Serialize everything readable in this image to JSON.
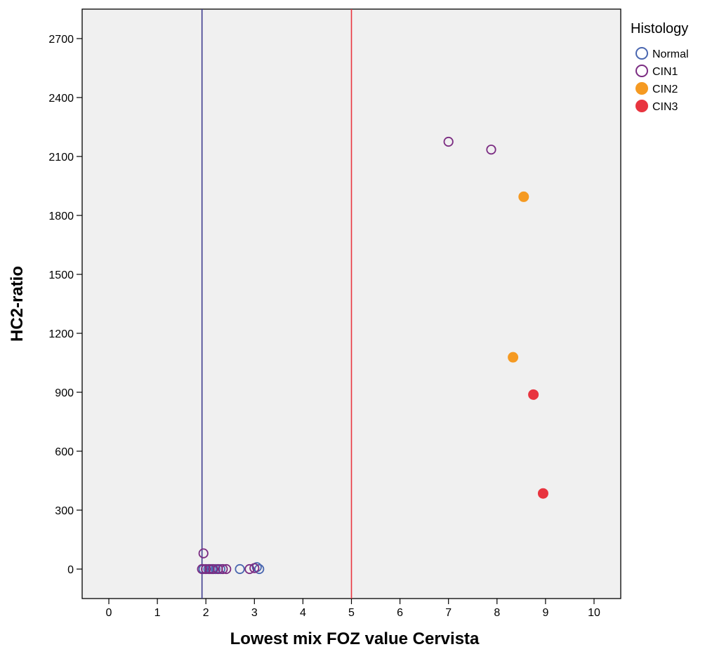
{
  "chart_data": {
    "type": "scatter",
    "xlabel": "Lowest mix FOZ value Cervista",
    "ylabel": "HC2-ratio",
    "xlim": [
      -0.55,
      10.55
    ],
    "ylim": [
      -150,
      2850
    ],
    "x_ticks": [
      0,
      1,
      2,
      3,
      4,
      5,
      6,
      7,
      8,
      9,
      10
    ],
    "y_ticks": [
      0,
      300,
      600,
      900,
      1200,
      1500,
      1800,
      2100,
      2400,
      2700
    ],
    "grid": false,
    "background": "#f0f0f0",
    "legend": {
      "title": "Histology",
      "position": "right"
    },
    "reference_lines": [
      {
        "axis": "x",
        "value": 1.92,
        "color": "#3f3d8f"
      },
      {
        "axis": "x",
        "value": 5.0,
        "color": "#e8343f"
      }
    ],
    "series": [
      {
        "name": "Normal",
        "color": "#4a67b0",
        "filled": false,
        "points": [
          [
            1.95,
            0
          ],
          [
            2.05,
            0
          ],
          [
            2.12,
            0
          ],
          [
            2.2,
            0
          ],
          [
            2.3,
            0
          ],
          [
            2.7,
            0
          ],
          [
            3.05,
            10
          ],
          [
            3.1,
            0
          ]
        ]
      },
      {
        "name": "CIN1",
        "color": "#7b2c82",
        "filled": false,
        "points": [
          [
            1.95,
            80
          ],
          [
            1.92,
            0
          ],
          [
            2.0,
            0
          ],
          [
            2.08,
            0
          ],
          [
            2.15,
            0
          ],
          [
            2.25,
            0
          ],
          [
            2.35,
            0
          ],
          [
            2.42,
            0
          ],
          [
            2.9,
            0
          ],
          [
            3.0,
            5
          ],
          [
            7.0,
            2175
          ],
          [
            7.88,
            2135
          ]
        ]
      },
      {
        "name": "CIN2",
        "color": "#f59a22",
        "filled": true,
        "points": [
          [
            8.55,
            1895
          ],
          [
            8.33,
            1078
          ]
        ]
      },
      {
        "name": "CIN3",
        "color": "#e8343f",
        "filled": true,
        "points": [
          [
            8.75,
            888
          ],
          [
            8.95,
            385
          ]
        ]
      }
    ]
  }
}
